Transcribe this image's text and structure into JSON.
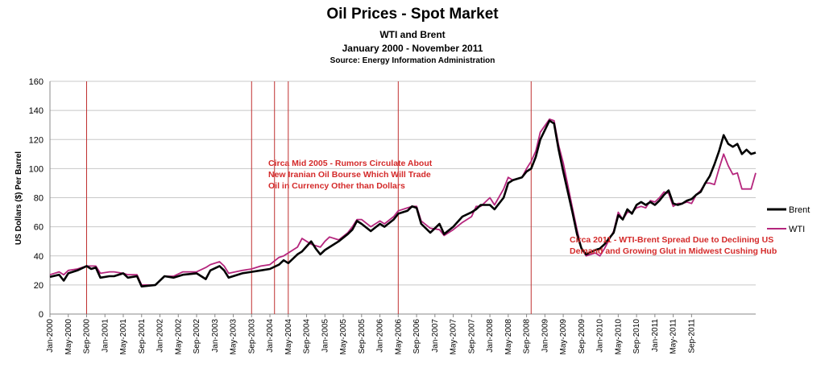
{
  "chart_data": {
    "type": "line",
    "title": "Oil Prices - Spot Market",
    "subtitle": "WTI and Brent",
    "date_range": "January 2000 - November 2011",
    "source": "Source: Energy Information Administration",
    "ylabel": "US Dollars ($) Per Barrel",
    "xlabel": "",
    "ylim": [
      0,
      160
    ],
    "y_ticks": [
      "0",
      "20",
      "40",
      "60",
      "80",
      "100",
      "120",
      "140",
      "160"
    ],
    "x_ticks": [
      "Jan-2000",
      "May-2000",
      "Sep-2000",
      "Jan-2001",
      "May-2001",
      "Sep-2001",
      "Jan-2002",
      "May-2002",
      "Sep-2002",
      "Jan-2003",
      "May-2003",
      "Sep-2003",
      "Jan-2004",
      "May-2004",
      "Sep-2004",
      "Jan-2005",
      "May-2005",
      "Sep-2005",
      "Jan-2006",
      "May-2006",
      "Sep-2006",
      "Jan-2007",
      "May-2007",
      "Sep-2007",
      "Jan-2008",
      "May-2008",
      "Sep-2008",
      "Jan-2009",
      "May-2009",
      "Sep-2009",
      "Jan-2010",
      "May-2010",
      "Sep-2010",
      "Jan-2011",
      "May-2011",
      "Sep-2011"
    ],
    "x_start": "Jan-2000",
    "x_end": "Nov-2011",
    "grid": true,
    "legend_position": "right",
    "series": [
      {
        "name": "Brent",
        "color": "#000000",
        "points": [
          [
            0,
            25.5
          ],
          [
            2,
            27
          ],
          [
            3,
            23
          ],
          [
            4,
            28
          ],
          [
            6,
            30
          ],
          [
            8,
            33
          ],
          [
            9,
            31
          ],
          [
            10,
            32
          ],
          [
            11,
            25
          ],
          [
            13,
            26
          ],
          [
            14,
            26
          ],
          [
            16,
            28
          ],
          [
            17,
            25
          ],
          [
            19,
            26
          ],
          [
            20,
            19
          ],
          [
            23,
            20
          ],
          [
            25,
            26
          ],
          [
            27,
            25
          ],
          [
            29,
            27
          ],
          [
            32,
            28
          ],
          [
            34,
            24
          ],
          [
            35,
            30
          ],
          [
            37,
            33
          ],
          [
            38,
            30
          ],
          [
            39,
            25
          ],
          [
            42,
            28
          ],
          [
            44,
            29
          ],
          [
            46,
            30
          ],
          [
            48,
            31
          ],
          [
            50,
            34
          ],
          [
            51,
            37
          ],
          [
            52,
            35
          ],
          [
            54,
            41
          ],
          [
            55,
            43
          ],
          [
            57,
            50
          ],
          [
            58,
            45
          ],
          [
            59,
            41
          ],
          [
            60,
            44
          ],
          [
            61,
            46
          ],
          [
            63,
            50
          ],
          [
            65,
            55
          ],
          [
            66,
            58
          ],
          [
            67,
            64
          ],
          [
            68,
            62
          ],
          [
            70,
            57
          ],
          [
            72,
            62
          ],
          [
            73,
            60
          ],
          [
            75,
            65
          ],
          [
            76,
            69
          ],
          [
            78,
            71
          ],
          [
            79,
            74
          ],
          [
            80,
            73
          ],
          [
            81,
            62
          ],
          [
            83,
            56
          ],
          [
            85,
            62
          ],
          [
            86,
            55
          ],
          [
            88,
            60
          ],
          [
            90,
            67
          ],
          [
            92,
            70
          ],
          [
            93,
            72
          ],
          [
            94,
            75
          ],
          [
            96,
            75
          ],
          [
            97,
            72
          ],
          [
            99,
            80
          ],
          [
            100,
            90
          ],
          [
            101,
            92
          ],
          [
            103,
            94
          ],
          [
            104,
            98
          ],
          [
            105,
            100
          ],
          [
            106,
            108
          ],
          [
            107,
            120
          ],
          [
            109,
            133
          ],
          [
            110,
            131
          ],
          [
            111,
            113
          ],
          [
            112,
            98
          ],
          [
            114,
            70
          ],
          [
            115,
            55
          ],
          [
            116,
            45
          ],
          [
            117,
            41
          ],
          [
            119,
            44
          ],
          [
            120,
            45
          ],
          [
            121,
            48
          ],
          [
            123,
            56
          ],
          [
            124,
            68
          ],
          [
            125,
            65
          ],
          [
            126,
            72
          ],
          [
            127,
            69
          ],
          [
            128,
            75
          ],
          [
            129,
            77
          ],
          [
            130,
            75
          ],
          [
            131,
            77
          ],
          [
            132,
            75
          ],
          [
            133,
            78
          ],
          [
            134,
            82
          ],
          [
            135,
            85
          ],
          [
            136,
            76
          ],
          [
            137,
            75
          ],
          [
            138,
            76
          ],
          [
            139,
            78
          ],
          [
            140,
            79
          ],
          [
            141,
            82
          ],
          [
            142,
            84
          ],
          [
            143,
            90
          ],
          [
            144,
            95
          ],
          [
            145,
            103
          ],
          [
            146,
            112
          ],
          [
            147,
            123
          ],
          [
            148,
            117
          ],
          [
            149,
            115
          ],
          [
            150,
            117
          ],
          [
            151,
            110
          ],
          [
            152,
            113
          ],
          [
            153,
            110
          ],
          [
            154,
            111
          ]
        ]
      },
      {
        "name": "WTI",
        "color": "#b5267d",
        "points": [
          [
            0,
            27
          ],
          [
            2,
            29
          ],
          [
            3,
            27
          ],
          [
            4,
            30
          ],
          [
            6,
            31
          ],
          [
            8,
            33
          ],
          [
            9,
            33
          ],
          [
            10,
            33
          ],
          [
            11,
            28
          ],
          [
            13,
            29
          ],
          [
            14,
            29
          ],
          [
            16,
            28
          ],
          [
            17,
            27
          ],
          [
            19,
            27
          ],
          [
            20,
            20
          ],
          [
            23,
            20
          ],
          [
            25,
            26
          ],
          [
            27,
            26
          ],
          [
            29,
            29
          ],
          [
            32,
            29
          ],
          [
            34,
            32
          ],
          [
            35,
            34
          ],
          [
            37,
            36
          ],
          [
            38,
            33
          ],
          [
            39,
            28
          ],
          [
            42,
            30
          ],
          [
            44,
            31
          ],
          [
            46,
            33
          ],
          [
            48,
            34
          ],
          [
            50,
            39
          ],
          [
            51,
            40
          ],
          [
            52,
            42
          ],
          [
            54,
            46
          ],
          [
            55,
            52
          ],
          [
            57,
            48
          ],
          [
            58,
            47
          ],
          [
            59,
            46
          ],
          [
            60,
            50
          ],
          [
            61,
            53
          ],
          [
            63,
            51
          ],
          [
            65,
            56
          ],
          [
            66,
            60
          ],
          [
            67,
            65
          ],
          [
            68,
            65
          ],
          [
            70,
            60
          ],
          [
            72,
            64
          ],
          [
            73,
            62
          ],
          [
            75,
            67
          ],
          [
            76,
            71
          ],
          [
            78,
            73
          ],
          [
            79,
            74
          ],
          [
            80,
            74
          ],
          [
            81,
            64
          ],
          [
            83,
            59
          ],
          [
            85,
            58
          ],
          [
            86,
            54
          ],
          [
            88,
            58
          ],
          [
            90,
            63
          ],
          [
            92,
            67
          ],
          [
            93,
            74
          ],
          [
            94,
            74
          ],
          [
            96,
            80
          ],
          [
            97,
            75
          ],
          [
            99,
            86
          ],
          [
            100,
            94
          ],
          [
            101,
            92
          ],
          [
            103,
            94
          ],
          [
            104,
            100
          ],
          [
            105,
            105
          ],
          [
            106,
            112
          ],
          [
            107,
            125
          ],
          [
            109,
            134
          ],
          [
            110,
            133
          ],
          [
            111,
            116
          ],
          [
            112,
            104
          ],
          [
            114,
            73
          ],
          [
            115,
            58
          ],
          [
            116,
            45
          ],
          [
            117,
            40
          ],
          [
            119,
            42
          ],
          [
            120,
            40
          ],
          [
            121,
            45
          ],
          [
            123,
            57
          ],
          [
            124,
            70
          ],
          [
            125,
            65
          ],
          [
            126,
            70
          ],
          [
            127,
            70
          ],
          [
            128,
            73
          ],
          [
            129,
            74
          ],
          [
            130,
            73
          ],
          [
            131,
            78
          ],
          [
            132,
            77
          ],
          [
            133,
            80
          ],
          [
            134,
            84
          ],
          [
            135,
            83
          ],
          [
            136,
            74
          ],
          [
            137,
            76
          ],
          [
            138,
            76
          ],
          [
            139,
            77
          ],
          [
            140,
            76
          ],
          [
            141,
            82
          ],
          [
            142,
            85
          ],
          [
            143,
            90
          ],
          [
            144,
            90
          ],
          [
            145,
            89
          ],
          [
            146,
            100
          ],
          [
            147,
            110
          ],
          [
            148,
            102
          ],
          [
            149,
            96
          ],
          [
            150,
            97
          ],
          [
            151,
            86
          ],
          [
            152,
            86
          ],
          [
            153,
            86
          ],
          [
            154,
            97
          ]
        ]
      }
    ],
    "event_lines": [
      8,
      44,
      49,
      52,
      76,
      105
    ],
    "event_line_color": "#c03030",
    "annotations": [
      {
        "lines": [
          "Circa Mid 2005 - Rumors Circulate About",
          "New Iranian Oil Bourse Which Will Trade",
          "Oil in Currency Other than Dollars"
        ],
        "x": 68,
        "y": 64
      },
      {
        "lines": [
          "Circa 2011 - WTI-Brent Spread Due to Declining US",
          "Demand and Growing Glut in Midwest Cushing Hub"
        ],
        "x": 141,
        "y": 89
      }
    ]
  }
}
